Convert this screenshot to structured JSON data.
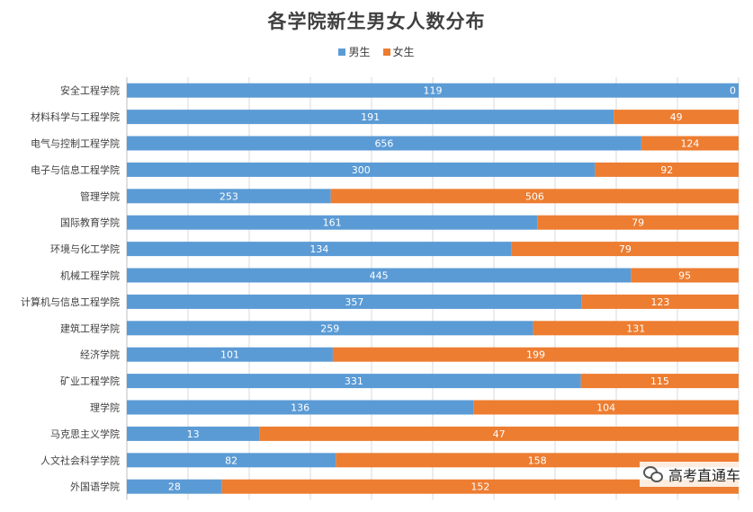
{
  "chart_data": {
    "type": "bar",
    "orientation": "horizontal",
    "stacked": "100%",
    "title": "各学院新生男女人数分布",
    "categories": [
      "安全工程学院",
      "材料科学与工程学院",
      "电气与控制工程学院",
      "电子与信息工程学院",
      "管理学院",
      "国际教育学院",
      "环境与化工学院",
      "机械工程学院",
      "计算机与信息工程学院",
      "建筑工程学院",
      "经济学院",
      "矿业工程学院",
      "理学院",
      "马克思主义学院",
      "人文社会科学学院",
      "外国语学院"
    ],
    "series": [
      {
        "name": "男生",
        "color": "#5b9bd5",
        "values": [
          119,
          191,
          656,
          300,
          253,
          161,
          134,
          445,
          357,
          259,
          101,
          331,
          136,
          13,
          82,
          28
        ]
      },
      {
        "name": "女生",
        "color": "#ed7d31",
        "values": [
          0,
          49,
          124,
          92,
          506,
          79,
          79,
          95,
          123,
          131,
          199,
          115,
          104,
          47,
          158,
          152
        ]
      }
    ],
    "legend": "top",
    "grid": true
  },
  "watermark": "高考直通车"
}
